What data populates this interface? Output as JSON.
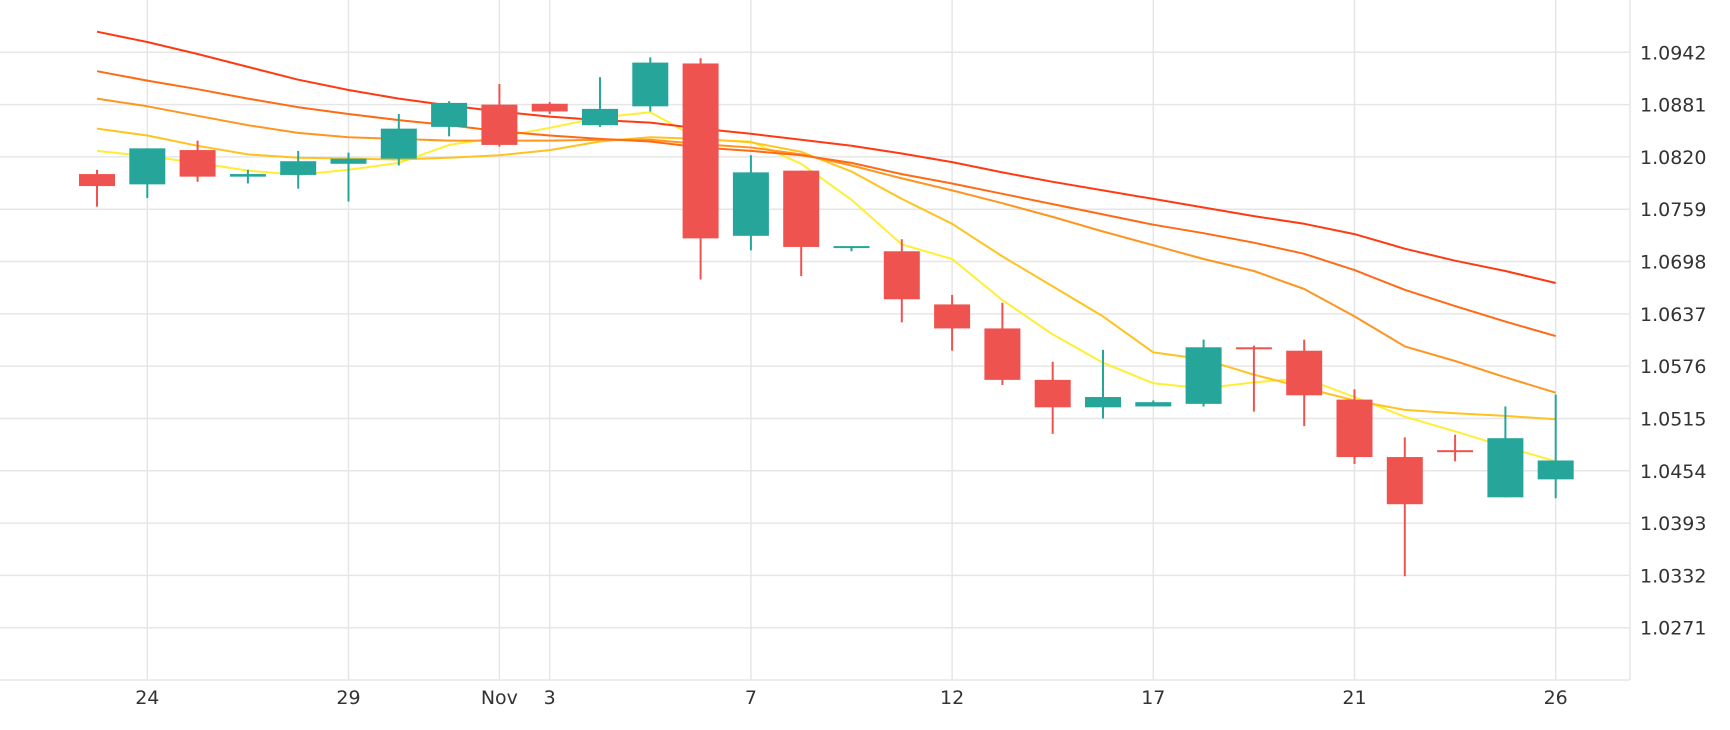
{
  "chart_data": {
    "type": "candlestick",
    "title": "",
    "xlabel": "",
    "ylabel": "",
    "ylim": [
      1.021,
      1.1003
    ],
    "y_ticks": [
      "1.0942",
      "1.0881",
      "1.0820",
      "1.0759",
      "1.0698",
      "1.0637",
      "1.0576",
      "1.0515",
      "1.0454",
      "1.0393",
      "1.0332",
      "1.0271"
    ],
    "x_tick_labels": [
      {
        "label": "24",
        "at_index": 1
      },
      {
        "label": "29",
        "at_index": 5
      },
      {
        "label": "Nov",
        "at_index": 8
      },
      {
        "label": "3",
        "at_index": 9
      },
      {
        "label": "7",
        "at_index": 13
      },
      {
        "label": "12",
        "at_index": 17
      },
      {
        "label": "17",
        "at_index": 21
      },
      {
        "label": "21",
        "at_index": 25
      },
      {
        "label": "26",
        "at_index": 29
      }
    ],
    "colors": {
      "up": "#26a69a",
      "down": "#ef5350",
      "grid": "#e6e6e6"
    },
    "candles": [
      {
        "o": 1.08,
        "h": 1.0805,
        "l": 1.0762,
        "c": 1.0786
      },
      {
        "o": 1.0788,
        "h": 1.083,
        "l": 1.0772,
        "c": 1.083
      },
      {
        "o": 1.0828,
        "h": 1.0839,
        "l": 1.0791,
        "c": 1.0797
      },
      {
        "o": 1.0797,
        "h": 1.0805,
        "l": 1.0789,
        "c": 1.08
      },
      {
        "o": 1.0799,
        "h": 1.0827,
        "l": 1.0783,
        "c": 1.0815
      },
      {
        "o": 1.0812,
        "h": 1.0825,
        "l": 1.0768,
        "c": 1.0818
      },
      {
        "o": 1.0818,
        "h": 1.087,
        "l": 1.081,
        "c": 1.0853
      },
      {
        "o": 1.0855,
        "h": 1.0885,
        "l": 1.0844,
        "c": 1.0883
      },
      {
        "o": 1.0881,
        "h": 1.0905,
        "l": 1.0832,
        "c": 1.0834
      },
      {
        "o": 1.0882,
        "h": 1.0884,
        "l": 1.087,
        "c": 1.0873
      },
      {
        "o": 1.0857,
        "h": 1.0913,
        "l": 1.0855,
        "c": 1.0876
      },
      {
        "o": 1.0879,
        "h": 1.0936,
        "l": 1.0873,
        "c": 1.093
      },
      {
        "o": 1.0929,
        "h": 1.0935,
        "l": 1.0677,
        "c": 1.0725
      },
      {
        "o": 1.0728,
        "h": 1.0822,
        "l": 1.0711,
        "c": 1.0802
      },
      {
        "o": 1.0804,
        "h": 1.0804,
        "l": 1.0681,
        "c": 1.0715
      },
      {
        "o": 1.0715,
        "h": 1.0716,
        "l": 1.071,
        "c": 1.0716
      },
      {
        "o": 1.071,
        "h": 1.0724,
        "l": 1.0627,
        "c": 1.0654
      },
      {
        "o": 1.0648,
        "h": 1.0659,
        "l": 1.0594,
        "c": 1.062
      },
      {
        "o": 1.062,
        "h": 1.065,
        "l": 1.0554,
        "c": 1.056
      },
      {
        "o": 1.056,
        "h": 1.0581,
        "l": 1.0497,
        "c": 1.0528
      },
      {
        "o": 1.0528,
        "h": 1.0595,
        "l": 1.0515,
        "c": 1.054
      },
      {
        "o": 1.0529,
        "h": 1.0536,
        "l": 1.0529,
        "c": 1.0534
      },
      {
        "o": 1.0532,
        "h": 1.0607,
        "l": 1.0529,
        "c": 1.0598
      },
      {
        "o": 1.0598,
        "h": 1.06,
        "l": 1.0523,
        "c": 1.0596
      },
      {
        "o": 1.0594,
        "h": 1.0607,
        "l": 1.0506,
        "c": 1.0542
      },
      {
        "o": 1.0537,
        "h": 1.0549,
        "l": 1.0462,
        "c": 1.047
      },
      {
        "o": 1.047,
        "h": 1.0493,
        "l": 1.0331,
        "c": 1.0415
      },
      {
        "o": 1.0478,
        "h": 1.0496,
        "l": 1.0465,
        "c": 1.0477
      },
      {
        "o": 1.0423,
        "h": 1.0529,
        "l": 1.0423,
        "c": 1.0492
      },
      {
        "o": 1.0444,
        "h": 1.0543,
        "l": 1.0422,
        "c": 1.0466
      }
    ],
    "series": [
      {
        "color": "#ffee33",
        "values": [
          1.0827,
          1.0821,
          1.0813,
          1.0804,
          1.0799,
          1.0805,
          1.0813,
          1.0834,
          1.0843,
          1.0854,
          1.0866,
          1.0872,
          1.084,
          1.0838,
          1.0812,
          1.077,
          1.0718,
          1.0701,
          1.0653,
          1.0613,
          1.058,
          1.0556,
          1.055,
          1.0557,
          1.0562,
          1.054,
          1.0517,
          1.05,
          1.0482,
          1.0465
        ]
      },
      {
        "color": "#ffc21e",
        "values": [
          1.0853,
          1.0845,
          1.0833,
          1.0823,
          1.0819,
          1.0818,
          1.0817,
          1.0819,
          1.0822,
          1.0828,
          1.0838,
          1.0843,
          1.0841,
          1.0837,
          1.0826,
          1.0803,
          1.0771,
          1.0742,
          1.0704,
          1.0669,
          1.0634,
          1.0592,
          1.0584,
          1.0566,
          1.0551,
          1.0536,
          1.0525,
          1.0521,
          1.0518,
          1.0514
        ]
      },
      {
        "color": "#ff9520",
        "values": [
          1.0888,
          1.0879,
          1.0868,
          1.0857,
          1.0848,
          1.0843,
          1.0841,
          1.0839,
          1.0839,
          1.0839,
          1.084,
          1.084,
          1.0835,
          1.0831,
          1.0823,
          1.081,
          1.0795,
          1.0781,
          1.0766,
          1.075,
          1.0733,
          1.0717,
          1.0701,
          1.0687,
          1.0666,
          1.0634,
          1.0599,
          1.0582,
          1.0563,
          1.0545
        ]
      },
      {
        "color": "#ff6a14",
        "values": [
          1.092,
          1.0909,
          1.0899,
          1.0888,
          1.0878,
          1.087,
          1.0863,
          1.0857,
          1.085,
          1.0845,
          1.0841,
          1.0838,
          1.0831,
          1.0827,
          1.0822,
          1.0813,
          1.08,
          1.0789,
          1.0777,
          1.0765,
          1.0753,
          1.0741,
          1.0731,
          1.072,
          1.0707,
          1.0688,
          1.0665,
          1.0646,
          1.0628,
          1.0611
        ]
      },
      {
        "color": "#ff3a12",
        "values": [
          1.0966,
          1.0954,
          1.094,
          1.0925,
          1.091,
          1.0898,
          1.0888,
          1.088,
          1.0873,
          1.0867,
          1.0863,
          1.086,
          1.0853,
          1.0847,
          1.084,
          1.0833,
          1.0824,
          1.0814,
          1.0802,
          1.0791,
          1.0781,
          1.0771,
          1.0761,
          1.0751,
          1.0742,
          1.073,
          1.0713,
          1.0699,
          1.0687,
          1.0673
        ]
      }
    ]
  }
}
